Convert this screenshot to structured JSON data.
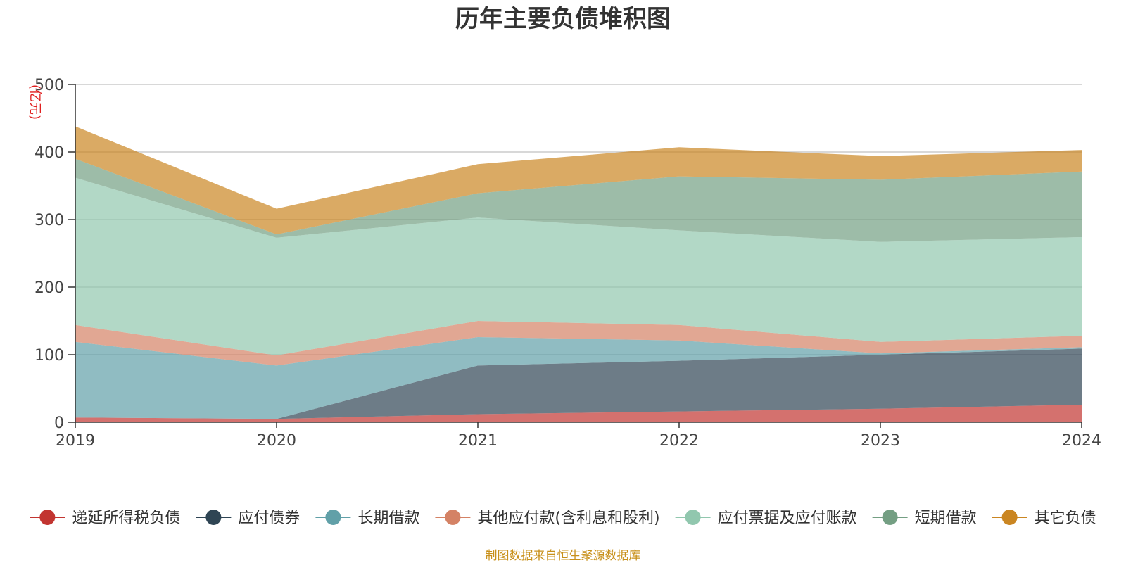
{
  "chart_data": {
    "type": "area",
    "stacked": true,
    "title": "历年主要负债堆积图",
    "unit_label": "(亿元)",
    "source_note": "制图数据来自恒生聚源数据库",
    "categories": [
      "2019",
      "2020",
      "2021",
      "2022",
      "2023",
      "2024"
    ],
    "ylim": [
      0,
      500
    ],
    "yticks": [
      0,
      100,
      200,
      300,
      400,
      500
    ],
    "grid": true,
    "legend_position": "bottom",
    "series": [
      {
        "name": "递延所得税负债",
        "color": "#c23531",
        "values": [
          7,
          5,
          12,
          16,
          20,
          26
        ]
      },
      {
        "name": "应付债券",
        "color": "#2f4554",
        "values": [
          0,
          0,
          72,
          75,
          80,
          83
        ]
      },
      {
        "name": "长期借款",
        "color": "#61a0a8",
        "values": [
          112,
          79,
          42,
          30,
          2,
          2
        ]
      },
      {
        "name": "其他应付款(含利息和股利)",
        "color": "#d48265",
        "values": [
          25,
          15,
          24,
          23,
          17,
          17
        ]
      },
      {
        "name": "应付票据及应付账款",
        "color": "#91c7ae",
        "values": [
          218,
          174,
          153,
          140,
          148,
          146
        ]
      },
      {
        "name": "短期借款",
        "color": "#749f83",
        "values": [
          28,
          5,
          36,
          80,
          92,
          97
        ]
      },
      {
        "name": "其它负债",
        "color": "#ca8622",
        "values": [
          48,
          38,
          43,
          43,
          35,
          32
        ]
      }
    ]
  }
}
